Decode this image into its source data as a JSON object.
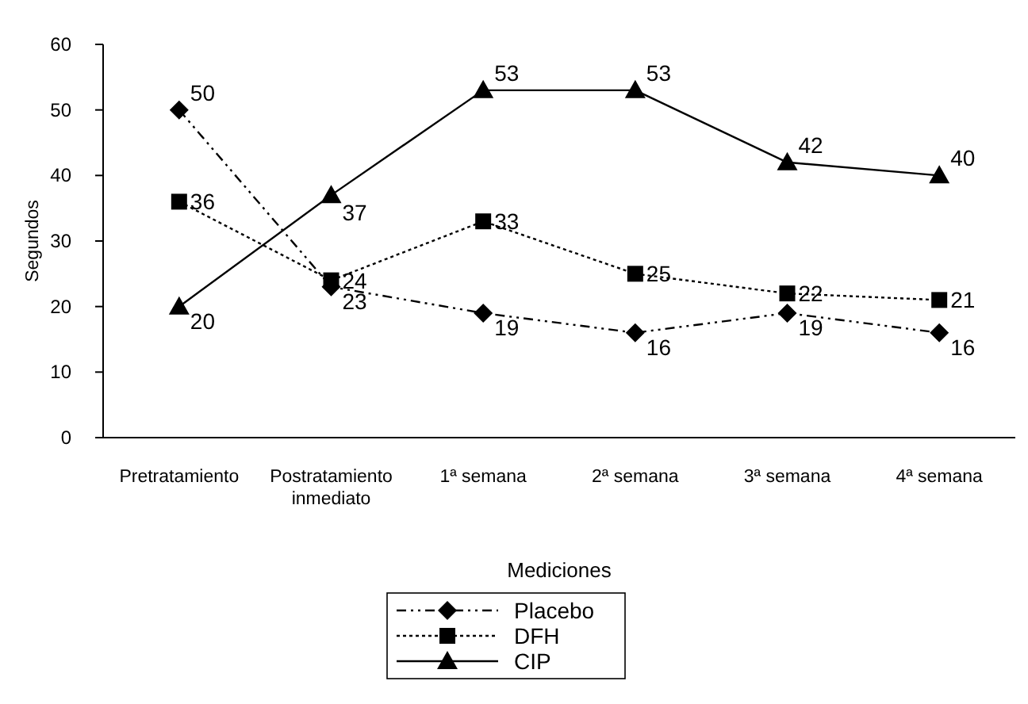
{
  "chart_data": {
    "type": "line",
    "xlabel": "Mediciones",
    "ylabel": "Segundos",
    "categories": [
      "Pretratamiento",
      "Postratamiento inmediato",
      "1ª semana",
      "2ª semana",
      "3ª semana",
      "4ª semana"
    ],
    "series": [
      {
        "name": "Placebo",
        "color": "#000000",
        "marker": "diamond",
        "line_style": "dashed",
        "values": [
          50,
          23,
          19,
          16,
          19,
          16
        ]
      },
      {
        "name": "DFH",
        "color": "#000000",
        "marker": "square",
        "line_style": "dotted",
        "values": [
          36,
          24,
          33,
          25,
          22,
          21
        ]
      },
      {
        "name": "CIP",
        "color": "#000000",
        "marker": "triangle",
        "line_style": "solid",
        "values": [
          20,
          37,
          53,
          53,
          42,
          40
        ]
      }
    ],
    "ylim": [
      0,
      60
    ],
    "yticks": [
      0,
      10,
      20,
      30,
      40,
      50,
      60
    ],
    "grid": false,
    "legend": "bottom",
    "data_labels": true
  }
}
